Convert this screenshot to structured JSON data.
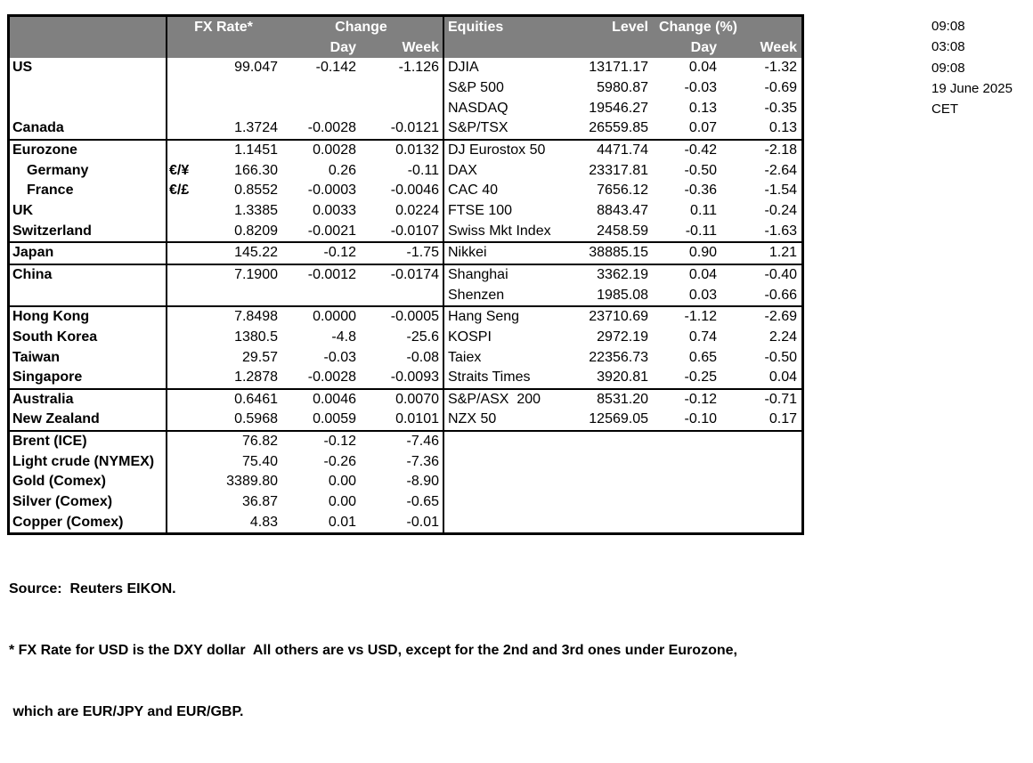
{
  "header": {
    "fx_rate": "FX Rate*",
    "fx_change": "Change",
    "fx_day": "Day",
    "fx_week": "Week",
    "equities": "Equities",
    "level": "Level",
    "eq_change": "Change (%)",
    "eq_day": "Day",
    "eq_week": "Week"
  },
  "rows": [
    {
      "label": "US",
      "pair": "",
      "rate": "99.047",
      "day": "-0.142",
      "week": "-1.126",
      "eq": "DJIA",
      "level": "13171.17",
      "eq_day": "0.04",
      "eq_week": "-1.32"
    },
    {
      "label": "",
      "pair": "",
      "rate": "",
      "day": "",
      "week": "",
      "eq": "S&P 500",
      "level": "5980.87",
      "eq_day": "-0.03",
      "eq_week": "-0.69"
    },
    {
      "label": "",
      "pair": "",
      "rate": "",
      "day": "",
      "week": "",
      "eq": "NASDAQ",
      "level": "19546.27",
      "eq_day": "0.13",
      "eq_week": "-0.35"
    },
    {
      "label": "Canada",
      "pair": "",
      "rate": "1.3724",
      "day": "-0.0028",
      "week": "-0.0121",
      "eq": "S&P/TSX",
      "level": "26559.85",
      "eq_day": "0.07",
      "eq_week": "0.13"
    },
    {
      "label": "Eurozone",
      "pair": "",
      "rate": "1.1451",
      "day": "0.0028",
      "week": "0.0132",
      "eq": "DJ Eurostox 50",
      "level": "4471.74",
      "eq_day": "-0.42",
      "eq_week": "-2.18",
      "sep": true
    },
    {
      "label": "Germany",
      "pair": "€/¥",
      "rate": "166.30",
      "day": "0.26",
      "week": "-0.11",
      "eq": "DAX",
      "level": "23317.81",
      "eq_day": "-0.50",
      "eq_week": "-2.64",
      "indent": true
    },
    {
      "label": "France",
      "pair": "€/£",
      "rate": "0.8552",
      "day": "-0.0003",
      "week": "-0.0046",
      "eq": "CAC 40",
      "level": "7656.12",
      "eq_day": "-0.36",
      "eq_week": "-1.54",
      "indent": true
    },
    {
      "label": "UK",
      "pair": "",
      "rate": "1.3385",
      "day": "0.0033",
      "week": "0.0224",
      "eq": "FTSE 100",
      "level": "8843.47",
      "eq_day": "0.11",
      "eq_week": "-0.24"
    },
    {
      "label": "Switzerland",
      "pair": "",
      "rate": "0.8209",
      "day": "-0.0021",
      "week": "-0.0107",
      "eq": "Swiss Mkt Index",
      "level": "2458.59",
      "eq_day": "-0.11",
      "eq_week": "-1.63"
    },
    {
      "label": "Japan",
      "pair": "",
      "rate": "145.22",
      "day": "-0.12",
      "week": "-1.75",
      "eq": "Nikkei",
      "level": "38885.15",
      "eq_day": "0.90",
      "eq_week": "1.21",
      "sep": true
    },
    {
      "label": "China",
      "pair": "",
      "rate": "7.1900",
      "day": "-0.0012",
      "week": "-0.0174",
      "eq": "Shanghai",
      "level": "3362.19",
      "eq_day": "0.04",
      "eq_week": "-0.40",
      "sep": true
    },
    {
      "label": "",
      "pair": "",
      "rate": "",
      "day": "",
      "week": "",
      "eq": "Shenzen",
      "level": "1985.08",
      "eq_day": "0.03",
      "eq_week": "-0.66"
    },
    {
      "label": "Hong Kong",
      "pair": "",
      "rate": "7.8498",
      "day": "0.0000",
      "week": "-0.0005",
      "eq": "Hang Seng",
      "level": "23710.69",
      "eq_day": "-1.12",
      "eq_week": "-2.69",
      "sep": true
    },
    {
      "label": "South Korea",
      "pair": "",
      "rate": "1380.5",
      "day": "-4.8",
      "week": "-25.6",
      "eq": "KOSPI",
      "level": "2972.19",
      "eq_day": "0.74",
      "eq_week": "2.24"
    },
    {
      "label": "Taiwan",
      "pair": "",
      "rate": "29.57",
      "day": "-0.03",
      "week": "-0.08",
      "eq": "Taiex",
      "level": "22356.73",
      "eq_day": "0.65",
      "eq_week": "-0.50"
    },
    {
      "label": "Singapore",
      "pair": "",
      "rate": "1.2878",
      "day": "-0.0028",
      "week": "-0.0093",
      "eq": "Straits Times",
      "level": "3920.81",
      "eq_day": "-0.25",
      "eq_week": "0.04"
    },
    {
      "label": "Australia",
      "pair": "",
      "rate": "0.6461",
      "day": "0.0046",
      "week": "0.0070",
      "eq": "S&P/ASX  200",
      "level": "8531.20",
      "eq_day": "-0.12",
      "eq_week": "-0.71",
      "sep": true
    },
    {
      "label": "New Zealand",
      "pair": "",
      "rate": "0.5968",
      "day": "0.0059",
      "week": "0.0101",
      "eq": "NZX 50",
      "level": "12569.05",
      "eq_day": "-0.10",
      "eq_week": "0.17"
    },
    {
      "label": "Brent (ICE)",
      "pair": "",
      "rate": "76.82",
      "day": "-0.12",
      "week": "-7.46",
      "eq": "",
      "level": "",
      "eq_day": "",
      "eq_week": "",
      "sep": true
    },
    {
      "label": "Light crude (NYMEX)",
      "pair": "",
      "rate": "75.40",
      "day": "-0.26",
      "week": "-7.36",
      "eq": "",
      "level": "",
      "eq_day": "",
      "eq_week": ""
    },
    {
      "label": "Gold (Comex)",
      "pair": "",
      "rate": "3389.80",
      "day": "0.00",
      "week": "-8.90",
      "eq": "",
      "level": "",
      "eq_day": "",
      "eq_week": ""
    },
    {
      "label": "Silver (Comex)",
      "pair": "",
      "rate": "36.87",
      "day": "0.00",
      "week": "-0.65",
      "eq": "",
      "level": "",
      "eq_day": "",
      "eq_week": ""
    },
    {
      "label": "Copper (Comex)",
      "pair": "",
      "rate": "4.83",
      "day": "0.01",
      "week": "-0.01",
      "eq": "",
      "level": "",
      "eq_day": "",
      "eq_week": ""
    }
  ],
  "timestamps": [
    "09:08",
    "03:08",
    "09:08",
    "19 June 2025",
    "CET"
  ],
  "footer": {
    "source": "Source:  Reuters EIKON.",
    "note1": "* FX Rate for USD is the DXY dollar  All others are vs USD, except for the 2nd and 3rd ones under Eurozone,",
    "note2": " which are EUR/JPY and EUR/GBP."
  },
  "colors": {
    "header_bg": "#808080",
    "header_text": "#ffffff",
    "border": "#000000"
  }
}
